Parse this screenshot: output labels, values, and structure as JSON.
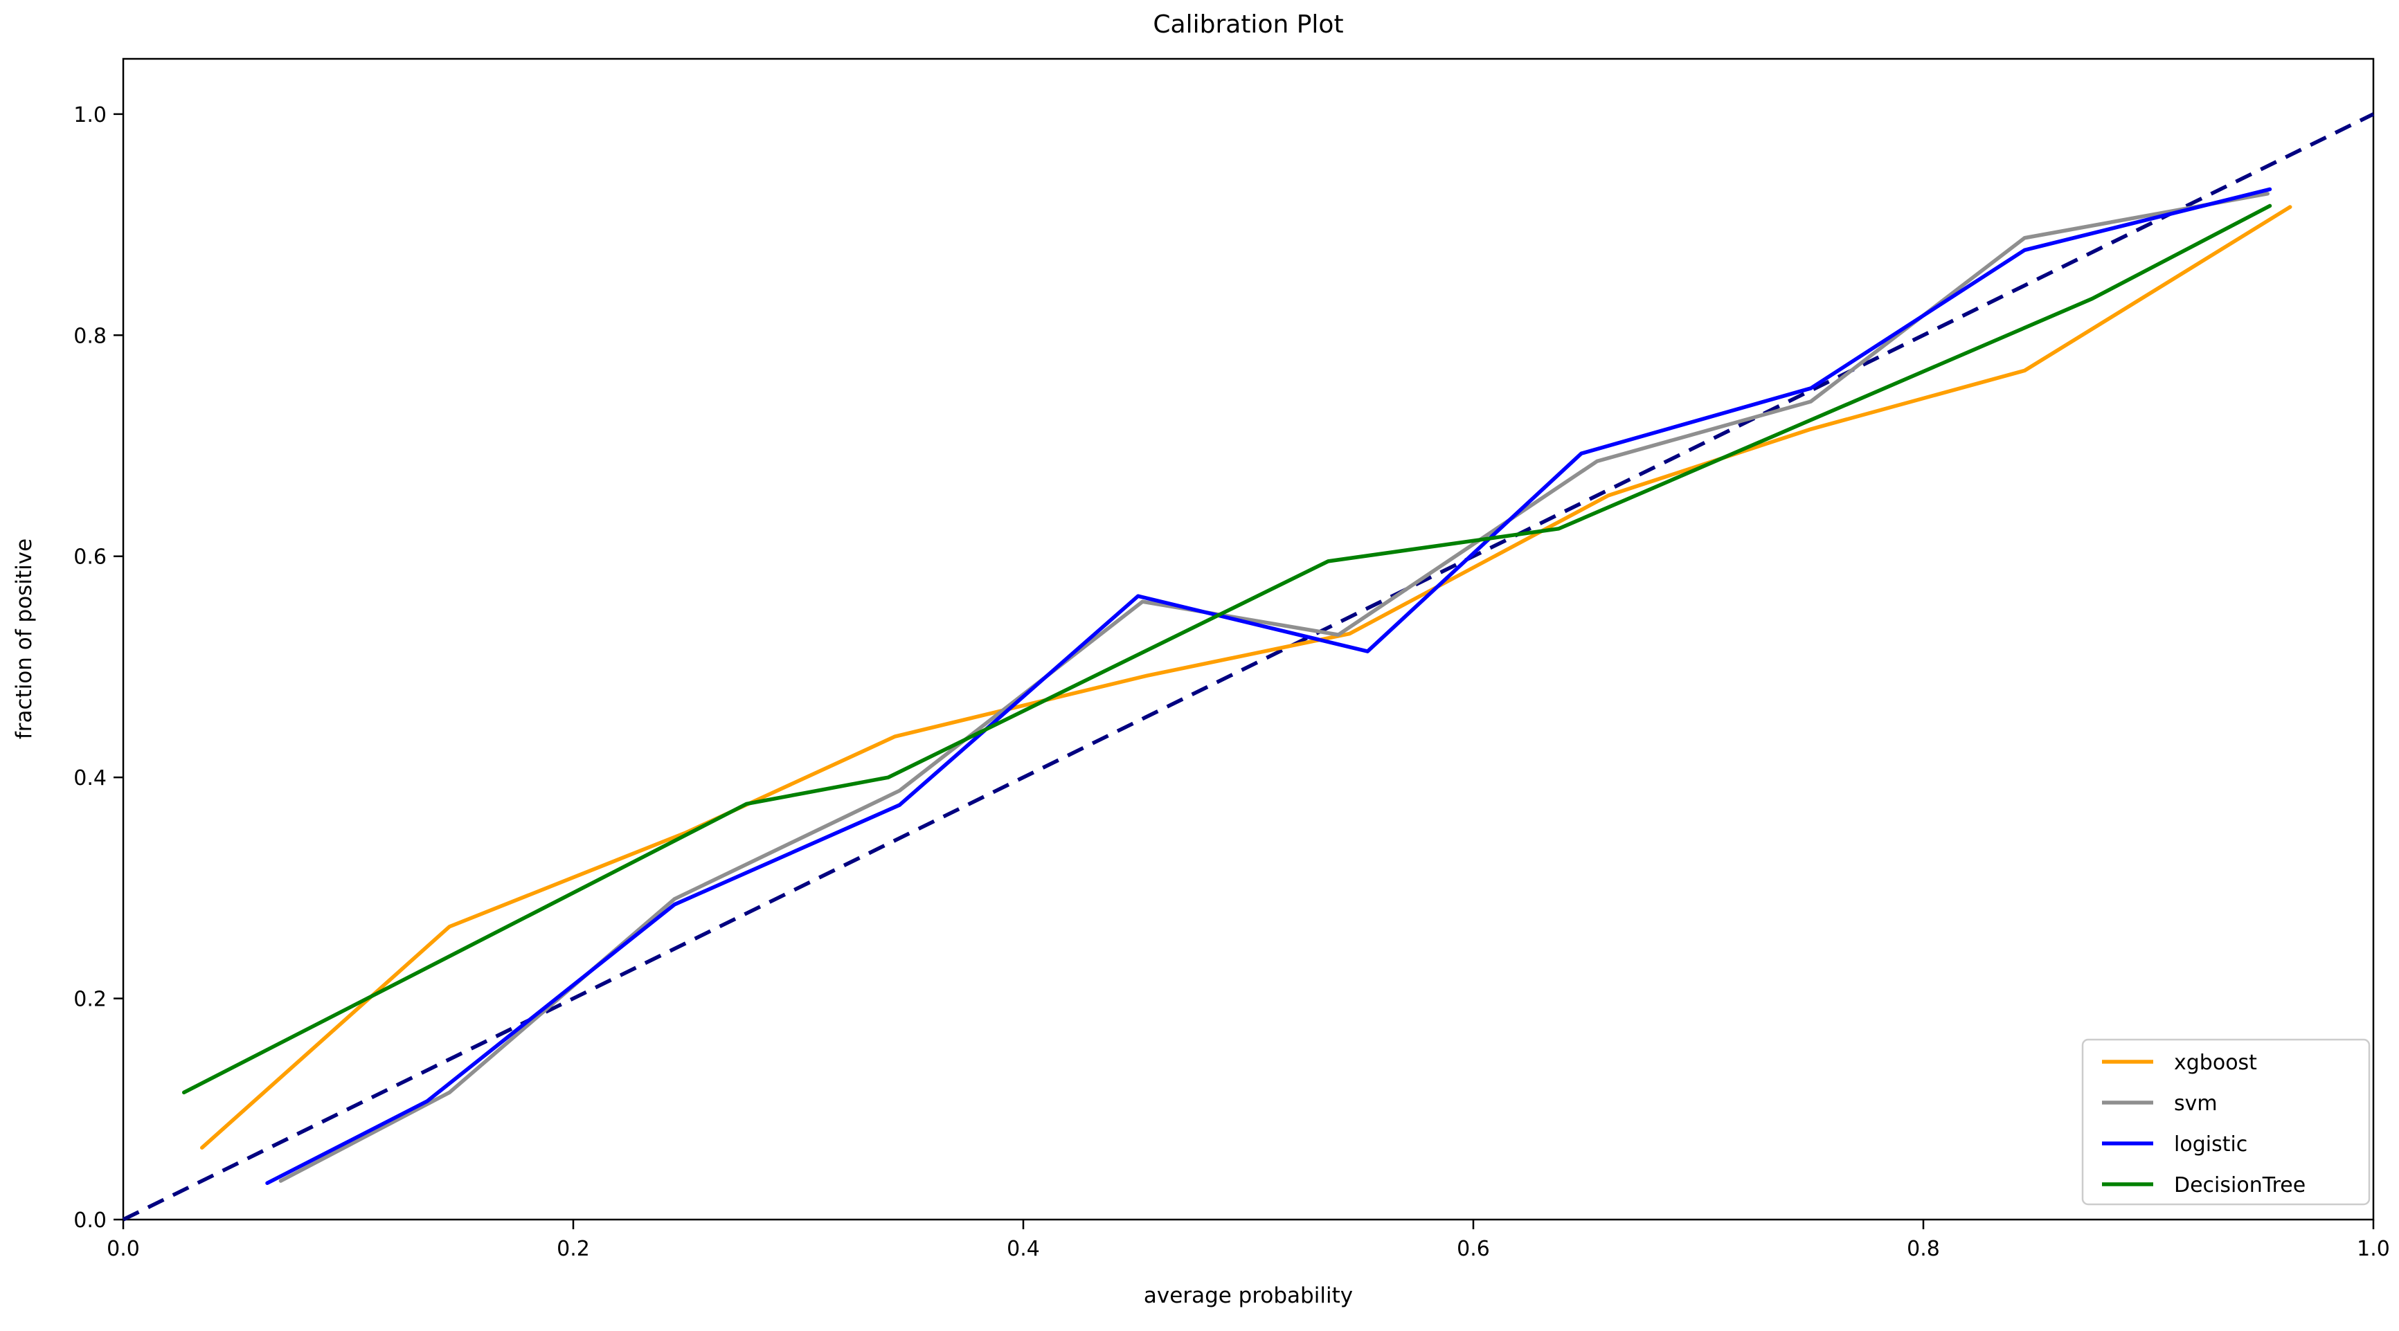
{
  "chart_data": {
    "type": "line",
    "title": "Calibration Plot",
    "xlabel": "average probability",
    "ylabel": "fraction of positive",
    "xlim": [
      0.0,
      1.0
    ],
    "ylim": [
      0.0,
      1.05
    ],
    "grid": false,
    "legend_position": "lower right",
    "x_ticks": {
      "values": [
        0.0,
        0.2,
        0.4,
        0.6,
        0.8,
        1.0
      ],
      "labels": [
        "0.0",
        "0.2",
        "0.4",
        "0.6",
        "0.8",
        "1.0"
      ]
    },
    "y_ticks": {
      "values": [
        0.0,
        0.2,
        0.4,
        0.6,
        0.8,
        1.0
      ],
      "labels": [
        "0.0",
        "0.2",
        "0.4",
        "0.6",
        "0.8",
        "1.0"
      ]
    },
    "reference_line": {
      "name": "perfect-calibration-diagonal",
      "style": "dashed",
      "color": "#000080",
      "points": [
        [
          0.0,
          0.0
        ],
        [
          1.0,
          1.0
        ]
      ]
    },
    "series": [
      {
        "name": "xgboost",
        "color": "#ff9f00",
        "points": [
          [
            0.035,
            0.065
          ],
          [
            0.145,
            0.265
          ],
          [
            0.25,
            0.35
          ],
          [
            0.343,
            0.437
          ],
          [
            0.4,
            0.465
          ],
          [
            0.455,
            0.492
          ],
          [
            0.545,
            0.53
          ],
          [
            0.66,
            0.655
          ],
          [
            0.75,
            0.715
          ],
          [
            0.845,
            0.768
          ],
          [
            0.963,
            0.916
          ]
        ]
      },
      {
        "name": "svm",
        "color": "#8f8f8f",
        "points": [
          [
            0.07,
            0.035
          ],
          [
            0.145,
            0.115
          ],
          [
            0.245,
            0.29
          ],
          [
            0.345,
            0.388
          ],
          [
            0.453,
            0.559
          ],
          [
            0.54,
            0.529
          ],
          [
            0.655,
            0.686
          ],
          [
            0.75,
            0.74
          ],
          [
            0.845,
            0.888
          ],
          [
            0.953,
            0.928
          ]
        ]
      },
      {
        "name": "logistic",
        "color": "#0000ff",
        "points": [
          [
            0.064,
            0.033
          ],
          [
            0.135,
            0.107
          ],
          [
            0.245,
            0.285
          ],
          [
            0.345,
            0.375
          ],
          [
            0.451,
            0.564
          ],
          [
            0.553,
            0.514
          ],
          [
            0.648,
            0.693
          ],
          [
            0.75,
            0.752
          ],
          [
            0.845,
            0.877
          ],
          [
            0.954,
            0.932
          ]
        ]
      },
      {
        "name": "DecisionTree",
        "color": "#008000",
        "points": [
          [
            0.027,
            0.115
          ],
          [
            0.277,
            0.376
          ],
          [
            0.34,
            0.4
          ],
          [
            0.5355,
            0.5955
          ],
          [
            0.638,
            0.625
          ],
          [
            0.875,
            0.833
          ],
          [
            0.954,
            0.917
          ]
        ]
      }
    ]
  }
}
